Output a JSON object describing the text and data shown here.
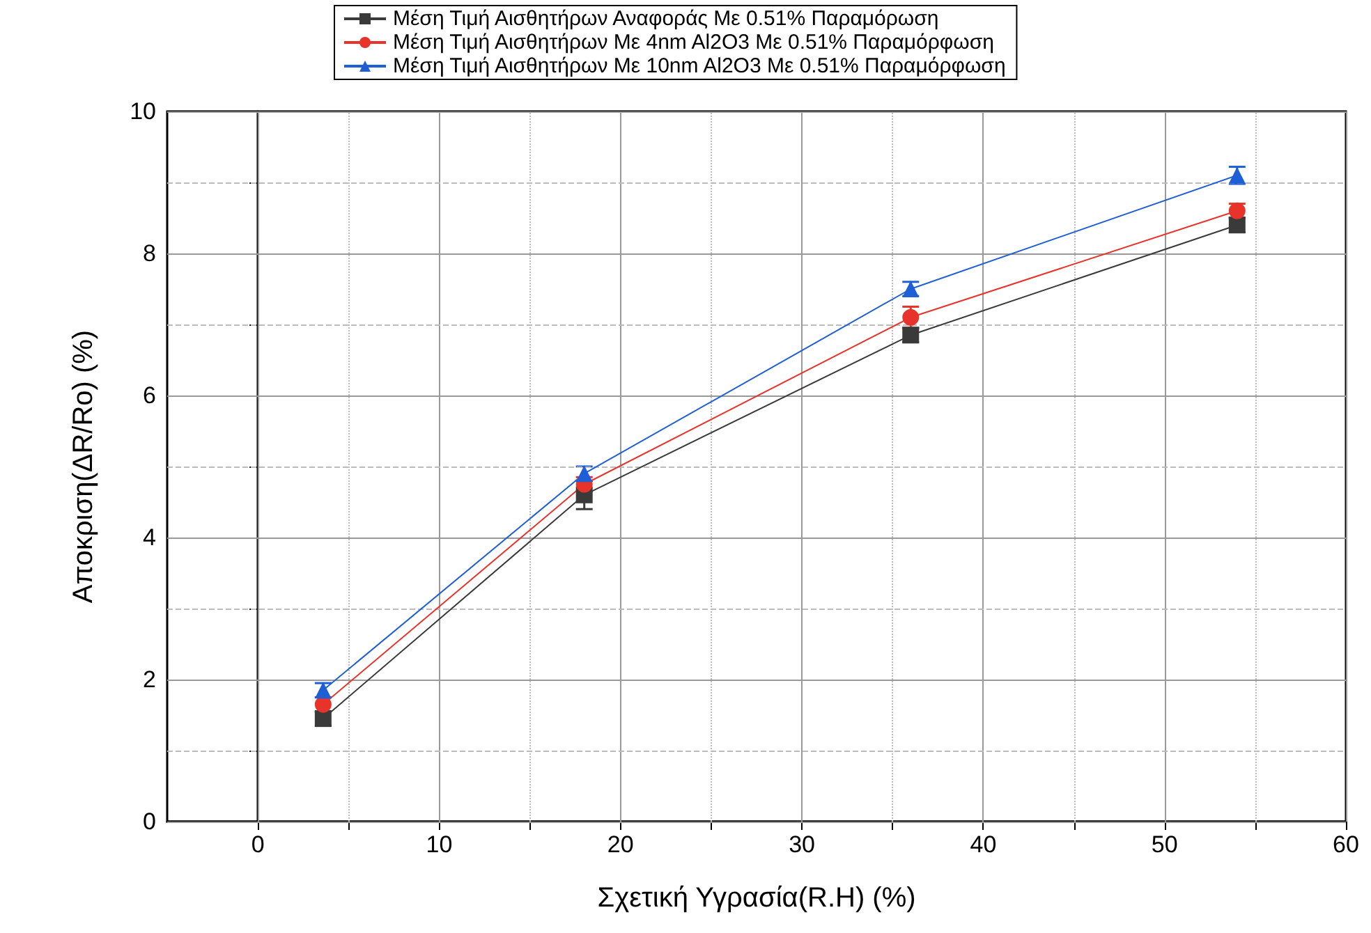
{
  "chart_data": {
    "type": "line",
    "xlabel": "Σχετική Υγρασία(R.H) (%)",
    "ylabel": "Αποκριση(ΔR/Ro) (%)",
    "x": [
      3.6,
      18,
      36,
      54
    ],
    "series": [
      {
        "name": "Μέση Τιμή Αισθητήρων Αναφοράς Με 0.51% Παραμόρωση",
        "color": "#3a3a3a",
        "marker": "square",
        "values": [
          1.45,
          4.6,
          6.85,
          8.4
        ],
        "errors": [
          0.1,
          0.2,
          0.1,
          0.1
        ]
      },
      {
        "name": "Μέση Τιμή Αισθητήρων Με 4nm Al2O3 Με 0.51% Παραμόρφωση",
        "color": "#e8332a",
        "marker": "circle",
        "values": [
          1.65,
          4.75,
          7.1,
          8.6
        ],
        "errors": [
          0.1,
          0.1,
          0.15,
          0.1
        ]
      },
      {
        "name": "Μέση Τιμή Αισθητήρων Με 10nm Al2O3 Με 0.51% Παραμόρφωση",
        "color": "#1f5fd6",
        "marker": "triangle",
        "values": [
          1.85,
          4.9,
          7.5,
          9.1
        ],
        "errors": [
          0.1,
          0.1,
          0.1,
          0.12
        ]
      }
    ],
    "xlim": [
      -5,
      60
    ],
    "xticks": [
      0,
      {
        "value": 5,
        "label": null
      },
      10,
      {
        "value": 15,
        "label": null
      },
      20,
      {
        "value": 25,
        "label": null
      },
      30,
      {
        "value": 35,
        "label": null
      },
      40,
      {
        "value": 45,
        "label": null
      },
      50,
      {
        "value": 55,
        "label": null
      },
      60
    ],
    "ylim": [
      0,
      10
    ],
    "yticks": [
      0,
      {
        "value": 1,
        "label": null
      },
      2,
      {
        "value": 3,
        "label": null
      },
      4,
      {
        "value": 5,
        "label": null
      },
      6,
      {
        "value": 7,
        "label": null
      },
      8,
      {
        "value": 9,
        "label": null
      },
      10
    ],
    "grid": true,
    "legend": "top",
    "line_style": "solid"
  }
}
